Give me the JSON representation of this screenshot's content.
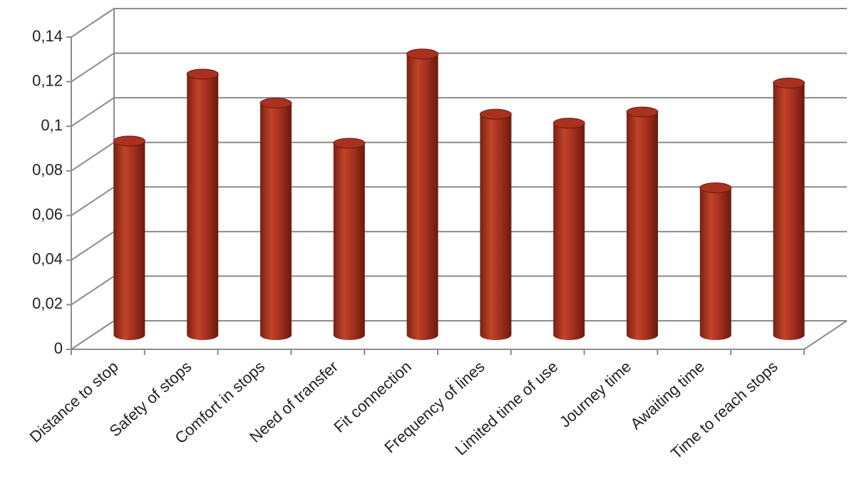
{
  "chart_data": {
    "type": "bar",
    "style": "3d-cylinder",
    "categories": [
      "Distance to stop",
      "Safety of stops",
      "Comfort in stops",
      "Need of transfer",
      "Fit connection",
      "Frequency of lines",
      "Limited time of use",
      "Journey time",
      "Awaiting time",
      "Time to reach stops"
    ],
    "values": [
      0.087,
      0.117,
      0.104,
      0.086,
      0.126,
      0.099,
      0.095,
      0.1,
      0.066,
      0.113
    ],
    "color": "#a8321f",
    "ylim": [
      0,
      0.14
    ],
    "yticks": [
      0,
      {
        "value": 0.02,
        "label": "0,02"
      },
      {
        "value": 0.04,
        "label": "0,04"
      },
      {
        "value": 0.06,
        "label": "0,06"
      },
      {
        "value": 0.08,
        "label": "0,08"
      },
      {
        "value": 0.1,
        "label": "0,1"
      },
      {
        "value": 0.12,
        "label": "0,12"
      },
      {
        "value": 0.14,
        "label": "0,14"
      }
    ],
    "grid": true
  }
}
